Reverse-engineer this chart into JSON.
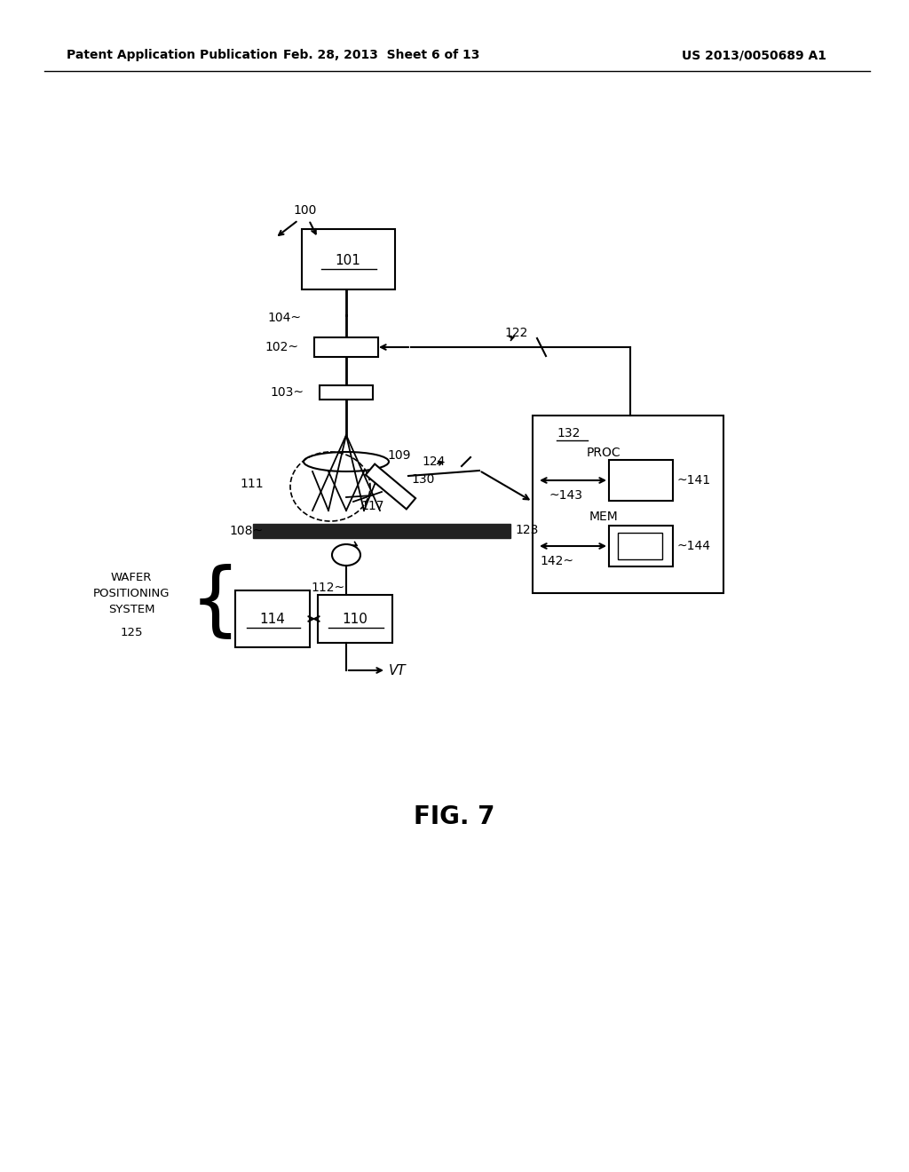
{
  "bg_color": "#ffffff",
  "header_left": "Patent Application Publication",
  "header_mid": "Feb. 28, 2013  Sheet 6 of 13",
  "header_right": "US 2013/0050689 A1",
  "fig_label": "FIG. 7"
}
